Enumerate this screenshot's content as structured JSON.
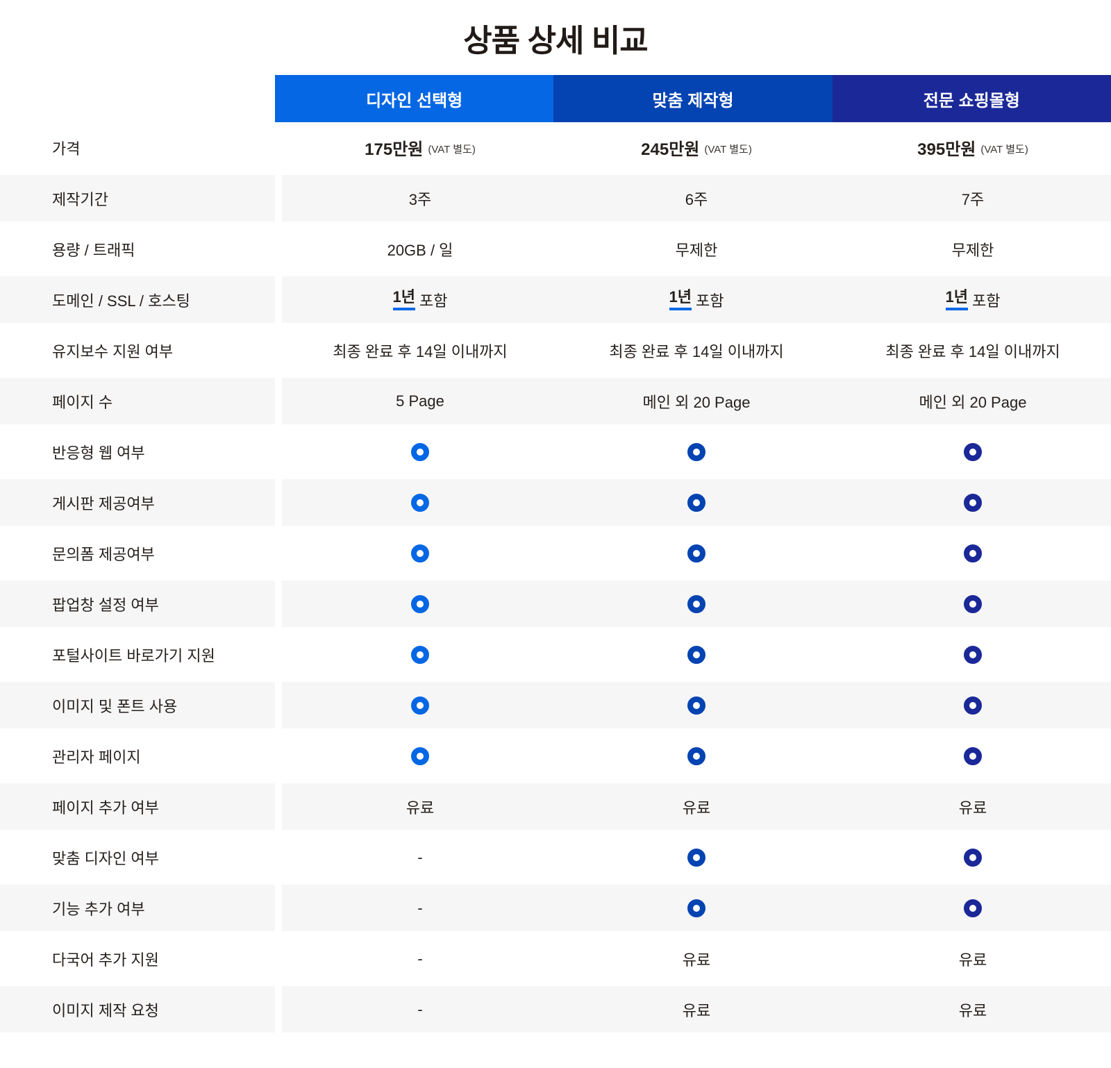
{
  "title": "상품 상세 비교",
  "dash": "-",
  "columns": [
    {
      "label": "디자인 선택형",
      "color": "#0667e4"
    },
    {
      "label": "맞춤 제작형",
      "color": "#0443b2"
    },
    {
      "label": "전문 쇼핑몰형",
      "color": "#1b2898"
    }
  ],
  "rows": [
    {
      "label": "가격",
      "cells": [
        {
          "type": "price",
          "amount": "175만원",
          "note": "(VAT 별도)"
        },
        {
          "type": "price",
          "amount": "245만원",
          "note": "(VAT 별도)"
        },
        {
          "type": "price",
          "amount": "395만원",
          "note": "(VAT 별도)"
        }
      ]
    },
    {
      "label": "제작기간",
      "cells": [
        {
          "type": "text",
          "text": "3주"
        },
        {
          "type": "text",
          "text": "6주"
        },
        {
          "type": "text",
          "text": "7주"
        }
      ]
    },
    {
      "label": "용량 / 트래픽",
      "cells": [
        {
          "type": "text",
          "text": "20GB / 일"
        },
        {
          "type": "text",
          "text": "무제한"
        },
        {
          "type": "text",
          "text": "무제한"
        }
      ]
    },
    {
      "label": "도메인 / SSL / 호스팅",
      "cells": [
        {
          "type": "underline",
          "underlined": "1년",
          "rest": "포함"
        },
        {
          "type": "underline",
          "underlined": "1년",
          "rest": "포함"
        },
        {
          "type": "underline",
          "underlined": "1년",
          "rest": "포함"
        }
      ]
    },
    {
      "label": "유지보수 지원 여부",
      "cells": [
        {
          "type": "text",
          "text": "최종 완료 후 14일 이내까지"
        },
        {
          "type": "text",
          "text": "최종 완료 후 14일 이내까지"
        },
        {
          "type": "text",
          "text": "최종 완료 후 14일 이내까지"
        }
      ]
    },
    {
      "label": "페이지 수",
      "cells": [
        {
          "type": "text",
          "text": "5 Page"
        },
        {
          "type": "text",
          "text": "메인 외 20 Page"
        },
        {
          "type": "text",
          "text": "메인 외 20 Page"
        }
      ]
    },
    {
      "label": "반응형 웹 여부",
      "cells": [
        {
          "type": "ring"
        },
        {
          "type": "ring"
        },
        {
          "type": "ring"
        }
      ]
    },
    {
      "label": "게시판 제공여부",
      "cells": [
        {
          "type": "ring"
        },
        {
          "type": "ring"
        },
        {
          "type": "ring"
        }
      ]
    },
    {
      "label": "문의폼 제공여부",
      "cells": [
        {
          "type": "ring"
        },
        {
          "type": "ring"
        },
        {
          "type": "ring"
        }
      ]
    },
    {
      "label": "팝업창 설정 여부",
      "cells": [
        {
          "type": "ring"
        },
        {
          "type": "ring"
        },
        {
          "type": "ring"
        }
      ]
    },
    {
      "label": "포털사이트 바로가기 지원",
      "cells": [
        {
          "type": "ring"
        },
        {
          "type": "ring"
        },
        {
          "type": "ring"
        }
      ]
    },
    {
      "label": "이미지 및 폰트 사용",
      "cells": [
        {
          "type": "ring"
        },
        {
          "type": "ring"
        },
        {
          "type": "ring"
        }
      ]
    },
    {
      "label": "관리자 페이지",
      "cells": [
        {
          "type": "ring"
        },
        {
          "type": "ring"
        },
        {
          "type": "ring"
        }
      ]
    },
    {
      "label": "페이지 추가 여부",
      "cells": [
        {
          "type": "text",
          "text": "유료"
        },
        {
          "type": "text",
          "text": "유료"
        },
        {
          "type": "text",
          "text": "유료"
        }
      ]
    },
    {
      "label": "맞춤 디자인 여부",
      "cells": [
        {
          "type": "dash"
        },
        {
          "type": "ring"
        },
        {
          "type": "ring"
        }
      ]
    },
    {
      "label": "기능 추가 여부",
      "cells": [
        {
          "type": "dash"
        },
        {
          "type": "ring"
        },
        {
          "type": "ring"
        }
      ]
    },
    {
      "label": "다국어 추가 지원",
      "cells": [
        {
          "type": "dash"
        },
        {
          "type": "text",
          "text": "유료"
        },
        {
          "type": "text",
          "text": "유료"
        }
      ]
    },
    {
      "label": "이미지 제작 요청",
      "cells": [
        {
          "type": "dash"
        },
        {
          "type": "text",
          "text": "유료"
        },
        {
          "type": "text",
          "text": "유료"
        }
      ]
    }
  ],
  "styles": {
    "row_alt_bg": "#f6f6f6",
    "underline_color": "#0a6ae8",
    "title_color": "#211a16",
    "text_color": "#26201d"
  }
}
